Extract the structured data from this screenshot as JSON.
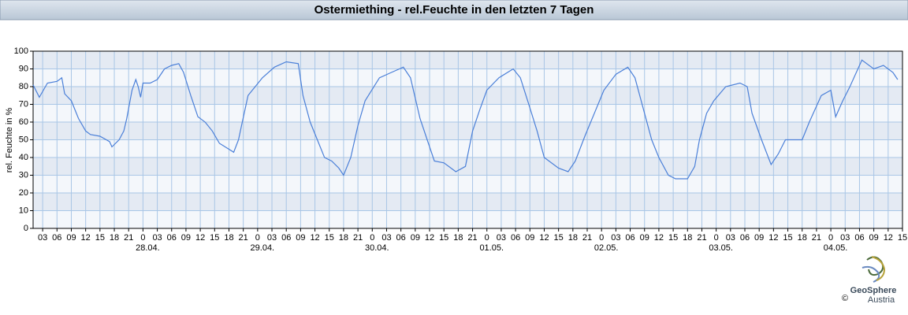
{
  "chart_data": {
    "type": "line",
    "title": "Ostermiething - rel.Feuchte in den letzten 7 Tagen",
    "y_label": "rel. Feuchte in %",
    "logo": {
      "name": "GeoSphere",
      "sub": "Austria",
      "copyright": "©"
    },
    "grid": true,
    "xlim": [
      1,
      183
    ],
    "ylim": [
      0,
      100
    ],
    "yticks": [
      0,
      10,
      20,
      30,
      40,
      50,
      60,
      70,
      80,
      90,
      100
    ],
    "xticks": [
      {
        "value": 3,
        "label": "03"
      },
      {
        "value": 6,
        "label": "06"
      },
      {
        "value": 9,
        "label": "09"
      },
      {
        "value": 12,
        "label": "12"
      },
      {
        "value": 15,
        "label": "15"
      },
      {
        "value": 18,
        "label": "18"
      },
      {
        "value": 21,
        "label": "21"
      },
      {
        "value": 24,
        "label": "0"
      },
      {
        "value": 27,
        "label": "03"
      },
      {
        "value": 30,
        "label": "06"
      },
      {
        "value": 33,
        "label": "09"
      },
      {
        "value": 36,
        "label": "12"
      },
      {
        "value": 39,
        "label": "15"
      },
      {
        "value": 42,
        "label": "18"
      },
      {
        "value": 45,
        "label": "21"
      },
      {
        "value": 48,
        "label": "0"
      },
      {
        "value": 51,
        "label": "03"
      },
      {
        "value": 54,
        "label": "06"
      },
      {
        "value": 57,
        "label": "09"
      },
      {
        "value": 60,
        "label": "12"
      },
      {
        "value": 63,
        "label": "15"
      },
      {
        "value": 66,
        "label": "18"
      },
      {
        "value": 69,
        "label": "21"
      },
      {
        "value": 72,
        "label": "0"
      },
      {
        "value": 75,
        "label": "03"
      },
      {
        "value": 78,
        "label": "06"
      },
      {
        "value": 81,
        "label": "09"
      },
      {
        "value": 84,
        "label": "12"
      },
      {
        "value": 87,
        "label": "15"
      },
      {
        "value": 90,
        "label": "18"
      },
      {
        "value": 93,
        "label": "21"
      },
      {
        "value": 96,
        "label": "0"
      },
      {
        "value": 99,
        "label": "03"
      },
      {
        "value": 102,
        "label": "06"
      },
      {
        "value": 105,
        "label": "09"
      },
      {
        "value": 108,
        "label": "12"
      },
      {
        "value": 111,
        "label": "15"
      },
      {
        "value": 114,
        "label": "18"
      },
      {
        "value": 117,
        "label": "21"
      },
      {
        "value": 120,
        "label": "0"
      },
      {
        "value": 123,
        "label": "03"
      },
      {
        "value": 126,
        "label": "06"
      },
      {
        "value": 129,
        "label": "09"
      },
      {
        "value": 132,
        "label": "12"
      },
      {
        "value": 135,
        "label": "15"
      },
      {
        "value": 138,
        "label": "18"
      },
      {
        "value": 141,
        "label": "21"
      },
      {
        "value": 144,
        "label": "0"
      },
      {
        "value": 147,
        "label": "03"
      },
      {
        "value": 150,
        "label": "06"
      },
      {
        "value": 153,
        "label": "09"
      },
      {
        "value": 156,
        "label": "12"
      },
      {
        "value": 159,
        "label": "15"
      },
      {
        "value": 162,
        "label": "18"
      },
      {
        "value": 165,
        "label": "21"
      },
      {
        "value": 168,
        "label": "0"
      },
      {
        "value": 171,
        "label": "03"
      },
      {
        "value": 174,
        "label": "06"
      },
      {
        "value": 177,
        "label": "09"
      },
      {
        "value": 180,
        "label": "12"
      },
      {
        "value": 183,
        "label": "15"
      }
    ],
    "date_labels": [
      {
        "value": 24,
        "label": "28.04."
      },
      {
        "value": 48,
        "label": "29.04."
      },
      {
        "value": 72,
        "label": "30.04."
      },
      {
        "value": 96,
        "label": "01.05."
      },
      {
        "value": 120,
        "label": "02.05."
      },
      {
        "value": 144,
        "label": "03.05."
      },
      {
        "value": 168,
        "label": "04.05."
      }
    ],
    "x": [
      1,
      2.3,
      4,
      6,
      7,
      7.6,
      9,
      10.5,
      12,
      13,
      15,
      17,
      17.5,
      19,
      20,
      20.6,
      21.7,
      22.5,
      23,
      23.5,
      24,
      25.5,
      27,
      28.5,
      30,
      31.5,
      32.5,
      34,
      35.5,
      37,
      38.5,
      40,
      41.8,
      43,
      44,
      44.8,
      46,
      47.5,
      49,
      51.5,
      54,
      56.5,
      57.5,
      59,
      60.5,
      62,
      63.5,
      65,
      66,
      67.5,
      69,
      70.5,
      73.5,
      76,
      78.5,
      80,
      82,
      83.5,
      85,
      87,
      89.5,
      91.5,
      93,
      94.5,
      96,
      98.5,
      101.5,
      103,
      105,
      106.5,
      108,
      111,
      113,
      114.5,
      116.5,
      118.5,
      120.5,
      123,
      125.5,
      127,
      129,
      130.5,
      132,
      134,
      135.5,
      138,
      139.5,
      140.5,
      142,
      143.5,
      146,
      149,
      150.5,
      151.5,
      153.5,
      155.5,
      157,
      158.5,
      160,
      162,
      163.5,
      166,
      168,
      169,
      170.5,
      172,
      174.5,
      177,
      179,
      181,
      182
    ],
    "series": [
      {
        "name": "rel. Feuchte",
        "color": "#4a7fd8",
        "values": [
          81,
          74,
          82,
          83,
          85,
          76,
          72,
          62,
          55,
          53,
          52,
          49,
          46,
          50,
          55,
          62,
          78,
          84,
          80,
          74,
          82,
          82,
          84,
          90,
          92,
          93,
          88,
          75,
          63,
          60,
          55,
          48,
          45,
          43,
          50,
          60,
          75,
          80,
          85,
          91,
          94,
          93,
          75,
          60,
          50,
          40,
          38,
          34,
          30,
          40,
          58,
          72,
          85,
          88,
          91,
          85,
          62,
          50,
          38,
          37,
          32,
          35,
          55,
          67,
          78,
          85,
          90,
          85,
          68,
          55,
          40,
          34,
          32,
          38,
          52,
          65,
          78,
          87,
          91,
          85,
          65,
          50,
          40,
          30,
          28,
          28,
          35,
          50,
          65,
          72,
          80,
          82,
          80,
          65,
          50,
          36,
          42,
          50,
          50,
          50,
          60,
          75,
          78,
          63,
          72,
          80,
          95,
          90,
          92,
          88,
          84
        ]
      }
    ]
  }
}
